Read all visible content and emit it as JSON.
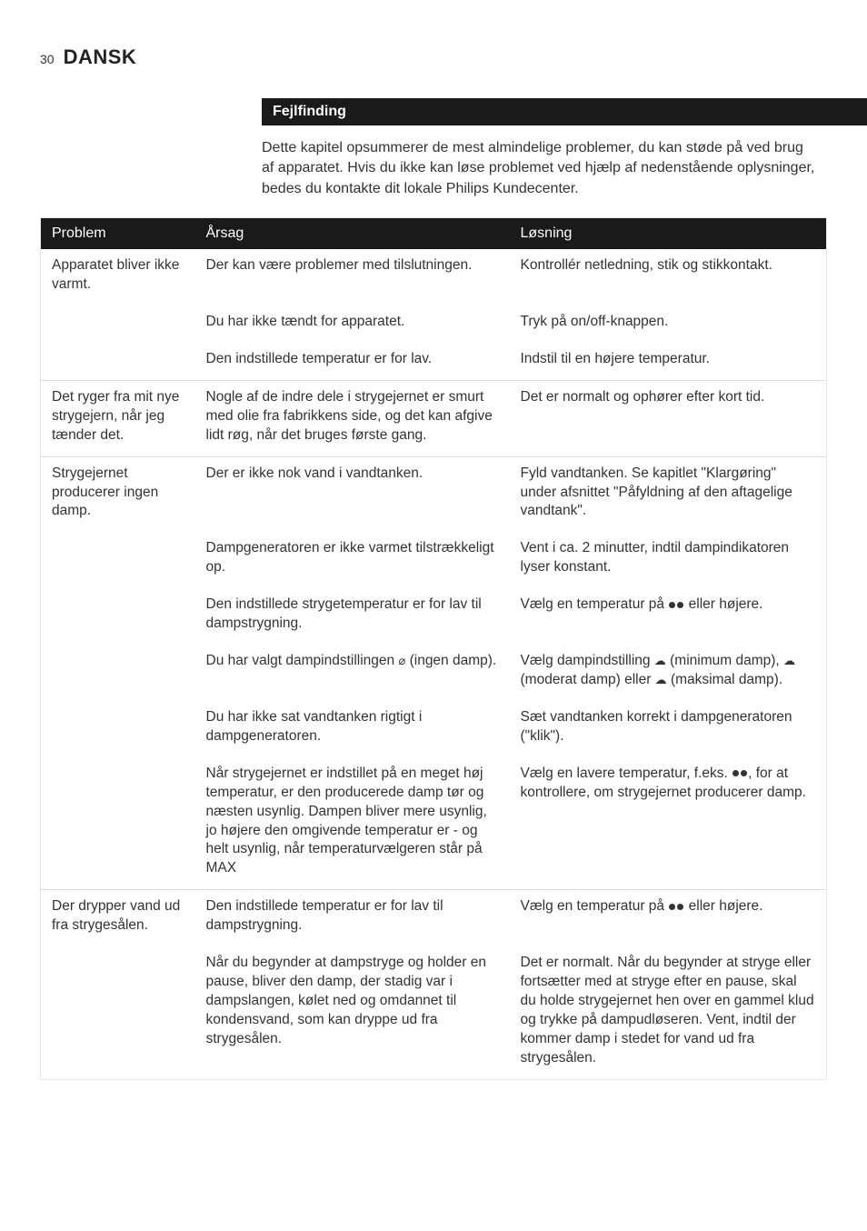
{
  "page_number": "30",
  "language_title": "DANSK",
  "section_heading": "Fejlfinding",
  "intro": "Dette kapitel opsummerer de mest almindelige problemer, du kan støde på ved brug af apparatet. Hvis du ikke kan løse problemet ved hjælp af nedenstående oplysninger, bedes du kontakte dit lokale Philips Kundecenter.",
  "headers": {
    "problem": "Problem",
    "cause": "Årsag",
    "solution": "Løsning"
  },
  "rows": [
    {
      "problem": "Apparatet bliver ikke varmt.",
      "cause": "Der kan være problemer med tilslutningen.",
      "solution": "Kontrollér netledning, stik og stikkontakt.",
      "group_start": true
    },
    {
      "problem": "",
      "cause": "Du har ikke tændt for apparatet.",
      "solution": "Tryk på on/off-knappen."
    },
    {
      "problem": "",
      "cause": "Den indstillede temperatur er for lav.",
      "solution": "Indstil til en højere temperatur."
    },
    {
      "problem": "Det ryger fra mit nye strygejern, når jeg tænder det.",
      "cause": "Nogle af de indre dele i strygejernet er smurt med olie fra fabrikkens side, og det kan afgive lidt røg, når det bruges første gang.",
      "solution": "Det er normalt og ophører efter kort tid.",
      "group_start": true
    },
    {
      "problem": "Strygejernet producerer ingen damp.",
      "cause": "Der er ikke nok vand i vandtanken.",
      "solution": "Fyld vandtanken. Se kapitlet \"Klargøring\" under afsnittet \"Påfyldning af den aftagelige vandtank\".",
      "group_start": true
    },
    {
      "problem": "",
      "cause": "Dampgeneratoren er ikke varmet tilstrækkeligt op.",
      "solution": "Vent i ca. 2 minutter, indtil dampindikatoren lyser konstant."
    },
    {
      "problem": "",
      "cause": "Den indstillede strygetemperatur er for lav til dampstrygning.",
      "solution_pre": "Vælg en temperatur på ",
      "solution_post": " eller højere.",
      "dots_in_solution": true
    },
    {
      "problem": "",
      "cause_pre": "Du har valgt dampindstillingen ",
      "cause_post": " (ingen damp).",
      "cause_has_icon": true,
      "solution_pre": "Vælg dampindstilling ",
      "solution_mid1": " (minimum damp), ",
      "solution_mid2": " (moderat damp) eller ",
      "solution_post": " (maksimal damp).",
      "steam_icons_in_solution": true
    },
    {
      "problem": "",
      "cause": "Du har ikke sat vandtanken rigtigt i dampgeneratoren.",
      "solution": "Sæt vandtanken korrekt i dampgeneratoren (\"klik\")."
    },
    {
      "problem": "",
      "cause": "Når strygejernet er indstillet på en meget høj temperatur, er den producerede damp tør og næsten usynlig. Dampen bliver mere usynlig, jo højere den omgivende temperatur er - og helt usynlig, når temperaturvælgeren står på MAX",
      "solution_pre": "Vælg en lavere temperatur, f.eks. ",
      "solution_post": ", for at kontrollere, om strygejernet producerer damp.",
      "dots_in_solution": true
    },
    {
      "problem": "Der drypper vand ud fra strygesålen.",
      "cause": "Den indstillede temperatur er for lav til dampstrygning.",
      "solution_pre": "Vælg en temperatur på ",
      "solution_post": " eller højere.",
      "dots_in_solution": true,
      "group_start": true
    },
    {
      "problem": "",
      "cause": "Når du begynder at dampstryge og holder en pause, bliver den damp, der stadig var i dampslangen, kølet ned og omdannet til kondensvand, som kan dryppe ud fra strygesålen.",
      "solution": "Det er normalt. Når du begynder at stryge eller fortsætter med at stryge efter en pause, skal du holde strygejernet hen over en gammel klud og trykke på dampudløseren. Vent, indtil der kommer damp i stedet for vand ud fra strygesålen."
    }
  ],
  "colors": {
    "header_bg": "#1a1a1a",
    "header_fg": "#ffffff",
    "text": "#333333",
    "border": "#dddddd",
    "page_bg": "#ffffff"
  }
}
